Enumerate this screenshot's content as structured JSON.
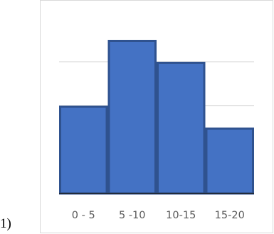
{
  "item_label": "1)",
  "chart_data": {
    "type": "bar",
    "title": "",
    "xlabel": "",
    "ylabel": "",
    "categories": [
      "0 - 5",
      "5 -10",
      "10-15",
      "15-20"
    ],
    "values": [
      4,
      7,
      6,
      3
    ],
    "ylim": [
      0,
      7
    ],
    "grid": true,
    "gridlines": [
      2,
      4,
      6
    ],
    "legend": "none",
    "bar_gap": 0,
    "colors": {
      "bar_fill": "#4472c4",
      "bar_edge": "#2f528f",
      "grid": "#d9d9d9",
      "axis": "#1f1f1f",
      "frame": "#d9d9d9"
    }
  }
}
